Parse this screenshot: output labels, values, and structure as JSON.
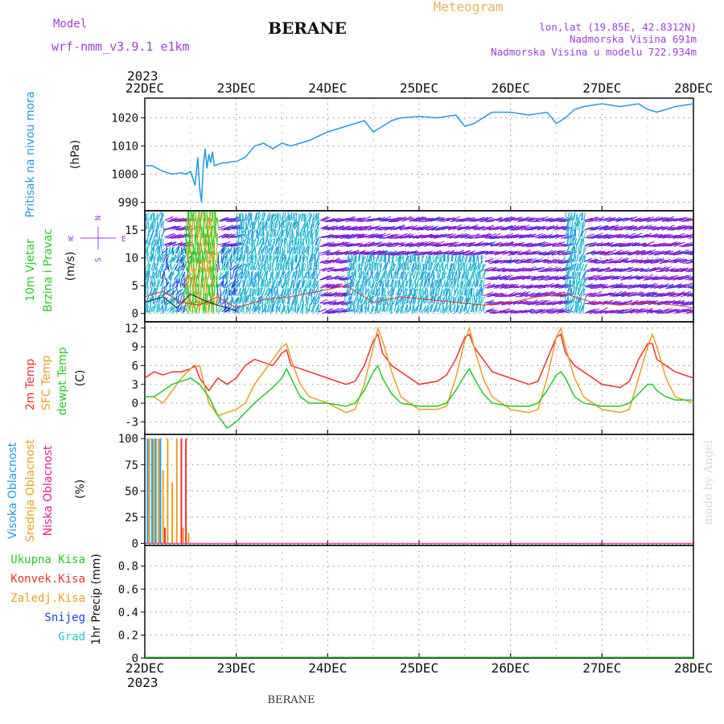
{
  "header": {
    "model_label": "Model",
    "model_name": "wrf-nmm_v3.9.1  e1km",
    "station": "BERANE",
    "product": "Meteogram",
    "lonlat": "lon,lat (19.85E, 42.8312N)",
    "elevation": "Nadmorska Visina 691m",
    "model_elevation": "Nadmorska Visina u modelu 722.934m",
    "footer_station": "BERANE",
    "credit": "made by Angel"
  },
  "colors": {
    "purple": "#a040d8",
    "gold": "#e8b060",
    "sky": "#1e9be0",
    "green": "#22cc22",
    "red": "#ee3030",
    "orange": "#e8a020",
    "magenta": "#e0208c",
    "blue": "#2040e0",
    "cyan": "#20c8c8",
    "wind_purple": "#8a20d0",
    "grid": "#888888"
  },
  "time_axis": {
    "year": "2023",
    "ticks": [
      "22DEC",
      "23DEC",
      "24DEC",
      "25DEC",
      "26DEC",
      "27DEC",
      "28DEC"
    ]
  },
  "chart_data": [
    {
      "id": "pressure",
      "type": "line",
      "ylabel": "Pritisak na nivou mora",
      "unit": "(hPa)",
      "ylim": [
        987,
        1027
      ],
      "yticks": [
        990,
        1000,
        1010,
        1020
      ],
      "grid": true,
      "series": [
        {
          "color": "#1e9be0",
          "x": [
            0,
            0.08,
            0.2,
            0.3,
            0.4,
            0.45,
            0.5,
            0.52,
            0.55,
            0.58,
            0.6,
            0.62,
            0.64,
            0.66,
            0.68,
            0.7,
            0.72,
            0.74,
            0.76,
            0.8,
            0.85,
            0.9,
            0.95,
            1.0,
            1.1,
            1.2,
            1.3,
            1.4,
            1.5,
            1.6,
            1.7,
            1.8,
            2.0,
            2.2,
            2.4,
            2.5,
            2.6,
            2.7,
            2.8,
            3.0,
            3.2,
            3.4,
            3.5,
            3.6,
            3.7,
            3.8,
            4.0,
            4.2,
            4.4,
            4.5,
            4.6,
            4.7,
            4.8,
            5.0,
            5.2,
            5.4,
            5.5,
            5.6,
            5.7,
            5.8,
            6.0
          ],
          "y": [
            1003,
            1003,
            1001,
            1000,
            1000.5,
            1000,
            1001,
            999,
            996,
            1006,
            995,
            990,
            1003,
            1009,
            1002,
            1007,
            1004,
            1008,
            1003,
            1003.5,
            1004,
            1004,
            1004.5,
            1004.5,
            1006,
            1010,
            1011,
            1009,
            1011,
            1010,
            1011,
            1012,
            1015,
            1017,
            1019,
            1015,
            1017,
            1019,
            1020,
            1020.5,
            1020,
            1021,
            1017,
            1018,
            1020,
            1022,
            1022,
            1021,
            1022,
            1018,
            1020,
            1023,
            1024,
            1025,
            1024,
            1025,
            1023,
            1022,
            1023,
            1024,
            1025
          ]
        }
      ]
    },
    {
      "id": "wind",
      "type": "scatter",
      "ylabel": "10m Vjetar Brzina i Pravac",
      "unit": "(m/s)",
      "ylim": [
        -1.5,
        18.5
      ],
      "yticks": [
        0,
        5,
        10,
        15
      ],
      "grid": true,
      "compass": [
        "N",
        "E",
        "S",
        "W"
      ],
      "gust_series": [
        {
          "color": "#ee3030",
          "x": [
            0,
            0.2,
            0.4,
            0.6,
            0.8,
            1.0,
            1.3,
            1.6,
            1.9,
            2.2,
            2.5,
            2.8,
            3.1,
            3.4,
            3.7,
            4.0,
            4.3,
            4.6,
            4.9,
            5.2,
            5.5,
            5.8,
            6.0
          ],
          "y": [
            3,
            4,
            2,
            1.5,
            3,
            1,
            2.5,
            3,
            4,
            5,
            2,
            3,
            2.5,
            2,
            1.5,
            2,
            3,
            3.5,
            2,
            1.5,
            2,
            1.5,
            1
          ]
        },
        {
          "color": "#222222",
          "x": [
            0,
            0.2,
            0.35,
            0.5,
            0.7,
            0.9,
            1.0
          ],
          "y": [
            2,
            3,
            1,
            3.5,
            2,
            1,
            0.5
          ]
        }
      ]
    },
    {
      "id": "temperature",
      "type": "line",
      "ylabel": [
        "2m Temp",
        "SFC Temp",
        "dewpt Temp"
      ],
      "unit": "(C)",
      "ylim": [
        -5,
        13
      ],
      "yticks": [
        -3,
        0,
        3,
        6,
        9,
        12
      ],
      "grid": true,
      "series": [
        {
          "name": "2m Temp",
          "color": "#ee3030",
          "x": [
            0,
            0.1,
            0.2,
            0.3,
            0.4,
            0.5,
            0.55,
            0.6,
            0.7,
            0.8,
            0.9,
            1.0,
            1.1,
            1.2,
            1.3,
            1.4,
            1.5,
            1.55,
            1.6,
            1.7,
            1.8,
            2.0,
            2.2,
            2.3,
            2.4,
            2.5,
            2.55,
            2.6,
            2.7,
            2.8,
            3.0,
            3.2,
            3.3,
            3.4,
            3.5,
            3.55,
            3.6,
            3.7,
            3.8,
            4.0,
            4.2,
            4.3,
            4.4,
            4.5,
            4.55,
            4.6,
            4.7,
            4.8,
            5.0,
            5.2,
            5.3,
            5.4,
            5.5,
            5.55,
            5.6,
            5.7,
            5.8,
            6.0
          ],
          "y": [
            4,
            5,
            4.5,
            5,
            5,
            5.5,
            6,
            4,
            2,
            4,
            3,
            4,
            6,
            7,
            6.5,
            6,
            8,
            8.5,
            6,
            5.5,
            5,
            4,
            3,
            3.5,
            6,
            10,
            11,
            8,
            6,
            5,
            3,
            3.5,
            4.5,
            7,
            10.5,
            11,
            9,
            7,
            5,
            4,
            3,
            3.5,
            7,
            10.5,
            11,
            8,
            6,
            5,
            3,
            2.5,
            3.5,
            7,
            9.5,
            9.5,
            7,
            6,
            5,
            4
          ]
        },
        {
          "name": "SFC Temp",
          "color": "#e8a020",
          "x": [
            0,
            0.1,
            0.2,
            0.3,
            0.4,
            0.5,
            0.6,
            0.7,
            0.8,
            0.9,
            1.0,
            1.1,
            1.2,
            1.3,
            1.4,
            1.5,
            1.55,
            1.6,
            1.7,
            1.8,
            2.0,
            2.2,
            2.3,
            2.4,
            2.5,
            2.55,
            2.6,
            2.7,
            2.8,
            3.0,
            3.2,
            3.3,
            3.4,
            3.5,
            3.55,
            3.6,
            3.7,
            3.8,
            4.0,
            4.2,
            4.3,
            4.4,
            4.5,
            4.55,
            4.6,
            4.7,
            4.8,
            5.0,
            5.2,
            5.3,
            5.4,
            5.5,
            5.55,
            5.6,
            5.7,
            5.8,
            6.0
          ],
          "y": [
            1,
            1,
            0,
            2,
            4,
            5.5,
            6,
            0,
            -2,
            -1.5,
            -1,
            0,
            3,
            5,
            7,
            9,
            9.5,
            7,
            3,
            1,
            0,
            -1.5,
            -1,
            3,
            9,
            12,
            10,
            5,
            1,
            -1,
            -1,
            -0.5,
            4,
            10,
            12,
            9,
            4,
            1,
            -1,
            -1.5,
            -1,
            4,
            10.5,
            12,
            9,
            4,
            1,
            -1,
            -1.5,
            -1,
            4,
            9,
            11,
            9,
            4,
            1,
            0
          ]
        },
        {
          "name": "dewpt Temp",
          "color": "#22cc22",
          "x": [
            0,
            0.1,
            0.2,
            0.3,
            0.4,
            0.5,
            0.6,
            0.7,
            0.8,
            0.9,
            1.0,
            1.2,
            1.4,
            1.5,
            1.55,
            1.6,
            1.7,
            1.8,
            2.0,
            2.2,
            2.3,
            2.4,
            2.5,
            2.55,
            2.6,
            2.7,
            2.8,
            3.0,
            3.2,
            3.3,
            3.4,
            3.5,
            3.55,
            3.6,
            3.7,
            3.8,
            4.0,
            4.2,
            4.3,
            4.4,
            4.5,
            4.55,
            4.6,
            4.7,
            4.8,
            5.0,
            5.2,
            5.3,
            5.4,
            5.5,
            5.55,
            5.6,
            5.7,
            5.8,
            6.0
          ],
          "y": [
            1,
            1,
            2,
            3,
            3.5,
            4,
            3,
            1,
            -2,
            -4,
            -3,
            0,
            2.5,
            4,
            5.5,
            4,
            1,
            0,
            0,
            -0.5,
            0,
            2,
            5,
            6,
            4,
            1.5,
            0,
            -0.5,
            -0.5,
            0,
            2,
            4.5,
            5.5,
            4,
            1.5,
            0,
            -0.5,
            -0.5,
            0,
            2,
            4.5,
            5,
            4,
            1,
            0,
            -0.5,
            -0.5,
            0,
            1.5,
            3,
            3,
            2,
            1,
            0.5,
            0.5
          ]
        }
      ]
    },
    {
      "id": "clouds",
      "type": "bar",
      "ylabel": [
        "Visoka Oblacnost",
        "Srednja Oblacnost",
        "Niska Oblacnost"
      ],
      "unit": "(%)",
      "ylim": [
        -2,
        104
      ],
      "yticks": [
        0,
        25,
        50,
        75,
        100
      ],
      "grid": true,
      "series": [
        {
          "name": "Visoka Oblacnost",
          "color": "#1e9be0",
          "x": [
            0.03,
            0.08,
            0.12,
            0.17
          ],
          "y": [
            100,
            100,
            100,
            100
          ]
        },
        {
          "name": "Srednja Oblacnost",
          "color": "#e8a020",
          "x": [
            0.05,
            0.1,
            0.15,
            0.2,
            0.25,
            0.3,
            0.35,
            0.42,
            0.48
          ],
          "y": [
            100,
            100,
            100,
            70,
            100,
            58,
            100,
            15,
            10
          ]
        },
        {
          "name": "Niska Oblacnost",
          "color": "#ee3030",
          "x": [
            0.22,
            0.4,
            0.45
          ],
          "y": [
            15,
            100,
            100
          ]
        }
      ]
    },
    {
      "id": "precip",
      "type": "bar",
      "ylabel": "1hr Precip",
      "unit": "(mm)",
      "ylim": [
        0,
        0.98
      ],
      "yticks": [
        0,
        0.2,
        0.4,
        0.6,
        0.8
      ],
      "grid": true,
      "legend": [
        {
          "label": "Ukupna Kisa",
          "color": "#22cc22"
        },
        {
          "label": "Konvek.Kisa",
          "color": "#ee3030"
        },
        {
          "label": "Zaledj.Kisa",
          "color": "#e8a020"
        },
        {
          "label": "Snijeg",
          "color": "#2040e0"
        },
        {
          "label": "Grad",
          "color": "#20c8c8"
        }
      ],
      "series": []
    }
  ]
}
